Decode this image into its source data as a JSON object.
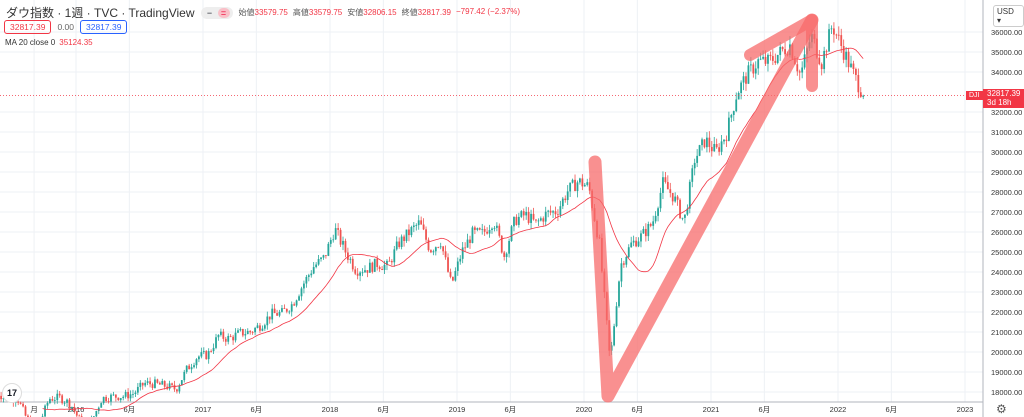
{
  "header": {
    "title": "ダウ指数 · 1週 · TVC · TradingView",
    "ohlc": [
      {
        "label": "始値",
        "value": "33579.75"
      },
      {
        "label": "高値",
        "value": "33579.75"
      },
      {
        "label": "安値",
        "value": "32806.15"
      },
      {
        "label": "終値",
        "value": "32817.39"
      },
      {
        "label": "",
        "value": "−797.42 (−2.37%)"
      }
    ],
    "sell": "32817.39",
    "spread": "0.00",
    "buy": "32817.39",
    "indicator": "MA 20 close 0",
    "indicator_value": "35124.35"
  },
  "price_axis": {
    "currency": "USD",
    "symbol": "DJI",
    "last": "32817.39",
    "countdown": "3d 18h"
  },
  "logo_text": "17",
  "colors": {
    "up": "#26a69a",
    "down": "#ef5350",
    "ma": "#f23645",
    "annotation": "#f76b6b"
  },
  "chart_data": {
    "type": "candlestick",
    "interval": "1W",
    "ylim": [
      17500,
      37000
    ],
    "yticks": [
      36000,
      35000,
      34000,
      32000,
      31000,
      30000,
      29000,
      28000,
      27000,
      26000,
      25000,
      24000,
      23000,
      22000,
      21000,
      20000,
      19000,
      18000
    ],
    "xticks": [
      {
        "label": "月",
        "t": 2015.67
      },
      {
        "label": "2016",
        "t": 2016.0
      },
      {
        "label": "6月",
        "t": 2016.42
      },
      {
        "label": "2017",
        "t": 2017.0
      },
      {
        "label": "6月",
        "t": 2017.42
      },
      {
        "label": "2018",
        "t": 2018.0
      },
      {
        "label": "6月",
        "t": 2018.42
      },
      {
        "label": "2019",
        "t": 2019.0
      },
      {
        "label": "6月",
        "t": 2019.42
      },
      {
        "label": "2020",
        "t": 2020.0
      },
      {
        "label": "6月",
        "t": 2020.42
      },
      {
        "label": "2021",
        "t": 2021.0
      },
      {
        "label": "6月",
        "t": 2021.42
      },
      {
        "label": "2022",
        "t": 2022.0
      },
      {
        "label": "6月",
        "t": 2022.42
      },
      {
        "label": "2023",
        "t": 2023.0
      }
    ],
    "monthly_close_start": 2015.33,
    "monthly_close": [
      18011,
      17620,
      17690,
      16528,
      16285,
      17664,
      17720,
      17425,
      16466,
      16517,
      17685,
      17774,
      17787,
      17930,
      18432,
      18401,
      18308,
      18142,
      19124,
      19763,
      19864,
      20812,
      20663,
      20940,
      21009,
      21350,
      21891,
      21948,
      22405,
      23377,
      24272,
      24719,
      26149,
      25029,
      24103,
      24163,
      24416,
      24271,
      25415,
      25965,
      26458,
      25116,
      25538,
      23327,
      24999,
      25916,
      25929,
      26593,
      24815,
      26600,
      26864,
      26403,
      26917,
      27046,
      28051,
      28538,
      28256,
      25409,
      19500,
      24346,
      25383,
      25813,
      26428,
      28430,
      27782,
      26502,
      29638,
      30606,
      29983,
      30932,
      32982,
      33875,
      34529,
      34503,
      34935,
      35361,
      33844,
      35820,
      34484,
      36338,
      35132,
      33893,
      32817
    ],
    "ma_period": 20
  }
}
